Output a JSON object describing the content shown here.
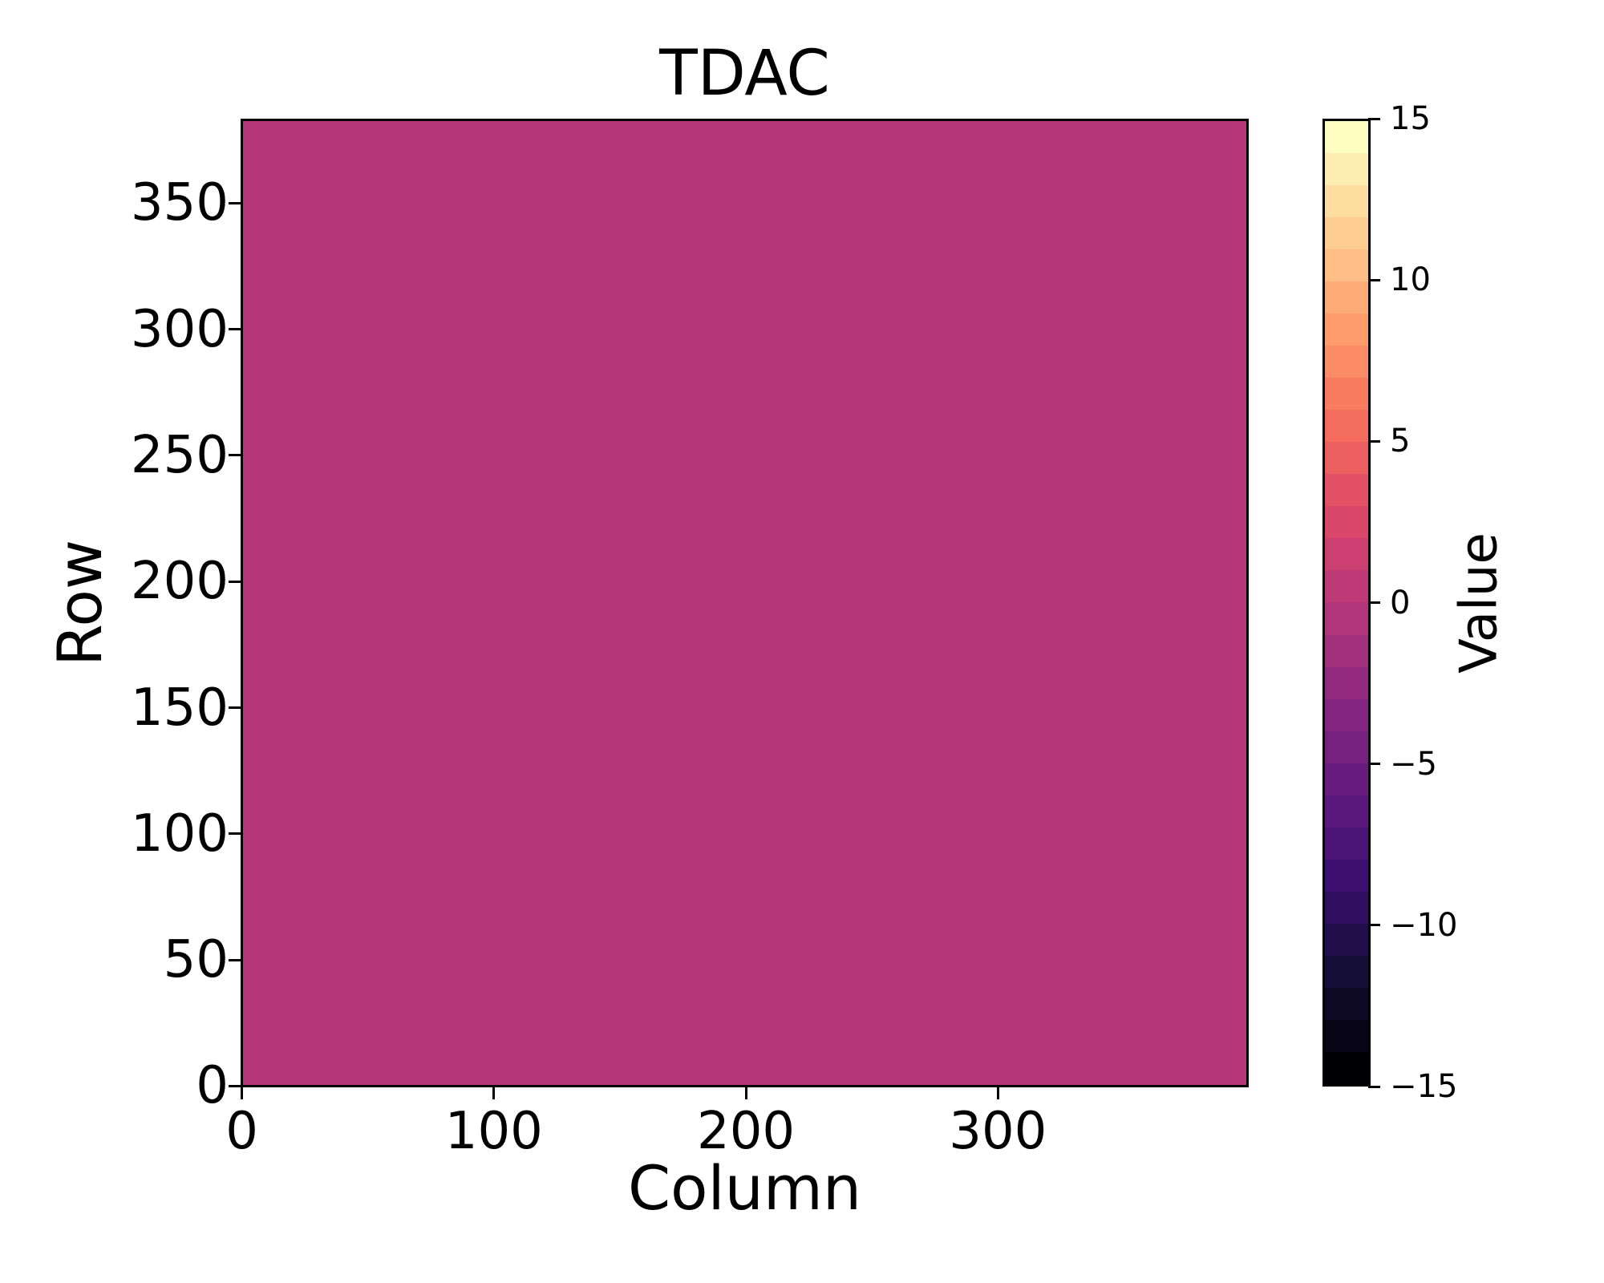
{
  "figure": {
    "background": "#ffffff"
  },
  "chart_data": {
    "type": "heatmap",
    "title": "TDAC",
    "xlabel": "Column",
    "ylabel": "Row",
    "n_cols": 400,
    "n_rows": 384,
    "x_range": [
      0,
      400
    ],
    "y_range": [
      0,
      384
    ],
    "x_ticks": [
      0,
      100,
      200,
      300
    ],
    "x_tick_labels": [
      "0",
      "100",
      "200",
      "300"
    ],
    "y_ticks": [
      0,
      50,
      100,
      150,
      200,
      250,
      300,
      350
    ],
    "y_tick_labels": [
      "0",
      "50",
      "100",
      "150",
      "200",
      "250",
      "300",
      "350"
    ],
    "values": "uniform: every pixel equals 0",
    "uniform_value": 0,
    "fill_color": "#b6377a",
    "colormap": "magma, 30 discrete levels",
    "grid": false,
    "colorbar": {
      "label": "Value",
      "min": -15,
      "max": 15,
      "n_segments": 30,
      "ticks": [
        15,
        10,
        5,
        0,
        -5,
        -10,
        -15
      ],
      "tick_labels": [
        "15",
        "10",
        "5",
        "0",
        "−5",
        "−10",
        "−15"
      ],
      "segment_colors_bottom_to_top": [
        "#000004",
        "#070515",
        "#0e0a26",
        "#150e38",
        "#230e4c",
        "#300f60",
        "#3e1071",
        "#4c1477",
        "#5a177c",
        "#681c80",
        "#762180",
        "#842681",
        "#922b80",
        "#a1307d",
        "#b0357a",
        "#be3a76",
        "#cb4070",
        "#d9476a",
        "#e35166",
        "#ec5f61",
        "#f46c5d",
        "#f97b60",
        "#fb8c66",
        "#fe9c6c",
        "#feac77",
        "#febd84",
        "#fecd91",
        "#fddda0",
        "#fdedb0",
        "#fcfdbf"
      ]
    }
  }
}
